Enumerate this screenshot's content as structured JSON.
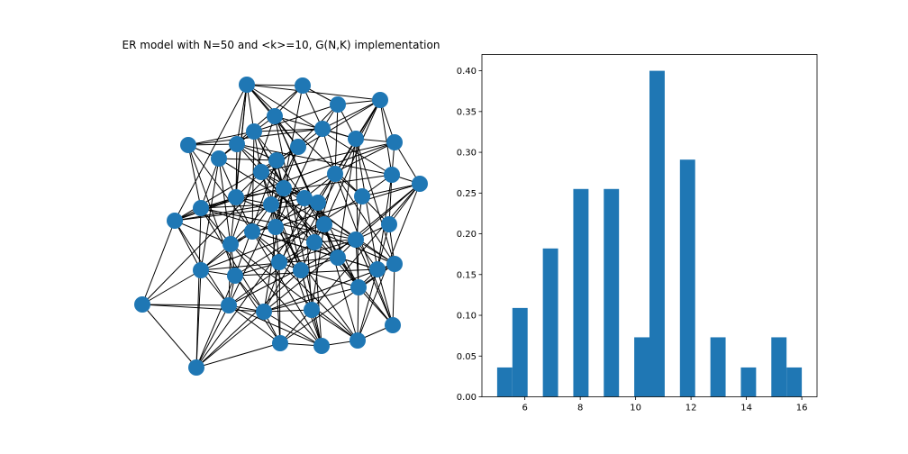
{
  "title": "ER model with N=50 and <k>=10, G(N,K) implementation",
  "colors": {
    "node": "#1f77b4",
    "edge": "#000000",
    "bar": "#1f77b4"
  },
  "chart_data": [
    {
      "type": "network",
      "title": "ER model with N=50 and <k>=10, G(N,K) implementation",
      "node_count": 50,
      "average_degree": 10
    },
    {
      "type": "bar",
      "title": "",
      "xlabel": "",
      "ylabel": "",
      "xlim": [
        4.45,
        16.55
      ],
      "ylim": [
        0,
        0.42
      ],
      "xticks": [
        6,
        8,
        10,
        12,
        14,
        16
      ],
      "yticks": [
        0.0,
        0.05,
        0.1,
        0.15,
        0.2,
        0.25,
        0.3,
        0.35,
        0.4
      ],
      "bin_width": 0.55,
      "bins": [
        {
          "x": 5.0,
          "value": 0.036
        },
        {
          "x": 5.55,
          "value": 0.109
        },
        {
          "x": 6.65,
          "value": 0.182
        },
        {
          "x": 7.75,
          "value": 0.255
        },
        {
          "x": 8.85,
          "value": 0.255
        },
        {
          "x": 9.95,
          "value": 0.073
        },
        {
          "x": 10.5,
          "value": 0.4
        },
        {
          "x": 11.6,
          "value": 0.291
        },
        {
          "x": 12.7,
          "value": 0.073
        },
        {
          "x": 13.8,
          "value": 0.036
        },
        {
          "x": 14.9,
          "value": 0.073
        },
        {
          "x": 15.45,
          "value": 0.036
        }
      ]
    }
  ]
}
